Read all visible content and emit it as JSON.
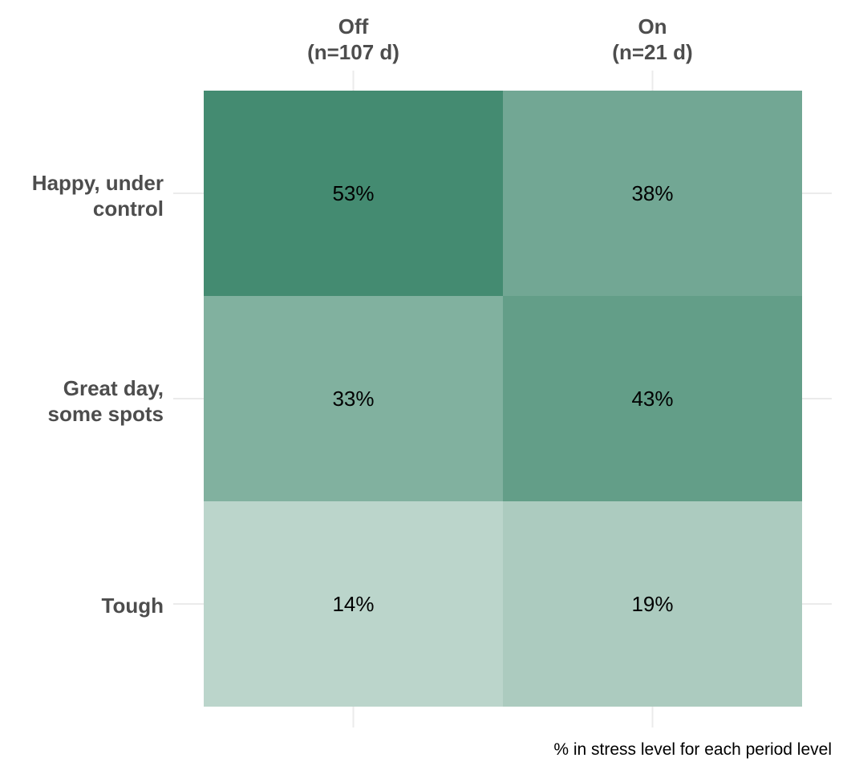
{
  "chart_data": {
    "type": "heatmap",
    "columns": [
      {
        "line1": "Off",
        "line2": "(n=107 d)"
      },
      {
        "line1": "On",
        "line2": "(n=21 d)"
      }
    ],
    "rows": [
      {
        "line1": "Happy, under",
        "line2": "control"
      },
      {
        "line1": "Great day,",
        "line2": "some spots"
      },
      {
        "line1": "Tough",
        "line2": ""
      }
    ],
    "values": [
      [
        53,
        38
      ],
      [
        33,
        43
      ],
      [
        14,
        19
      ]
    ],
    "cell_labels": [
      [
        "53%",
        "38%"
      ],
      [
        "33%",
        "43%"
      ],
      [
        "14%",
        "19%"
      ]
    ],
    "caption": "% in stress level for each period level",
    "color_low": "#e6efeb",
    "color_high": "#448b71",
    "value_range": [
      0,
      53
    ],
    "grid": true,
    "legend": "none"
  }
}
